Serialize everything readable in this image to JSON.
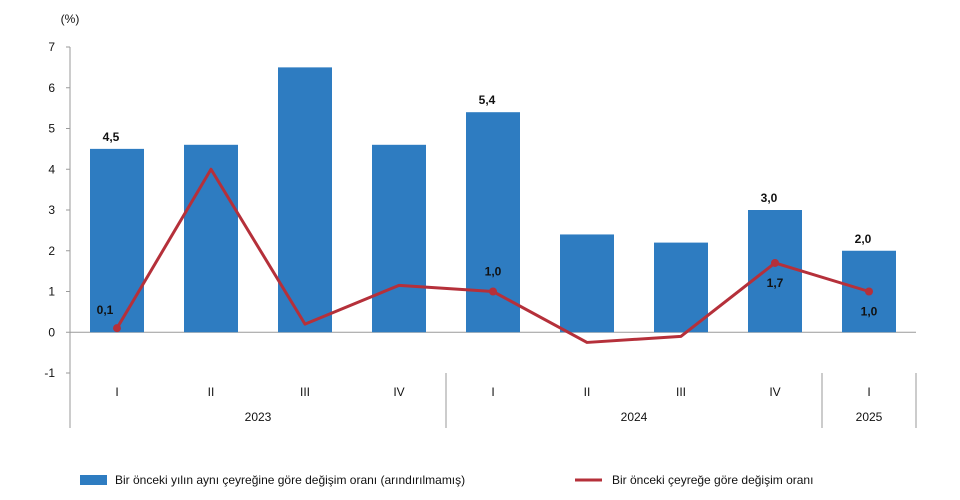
{
  "chart_data": {
    "type": "bar",
    "unit_label": "(%)",
    "y_ticks": [
      "7",
      "6",
      "5",
      "4",
      "3",
      "2",
      "1",
      "0",
      "-1"
    ],
    "ylim": [
      -1,
      7
    ],
    "quarters": [
      "I",
      "II",
      "III",
      "IV",
      "I",
      "II",
      "III",
      "IV",
      "I"
    ],
    "years": [
      "2023",
      "2024",
      "2025"
    ],
    "colors": {
      "bars": "#2e7cc1",
      "line": "#b5303a",
      "axis": "#9a9a9a"
    },
    "series": [
      {
        "name": "Bir önceki yılın aynı çeyreğine göre değişim oranı (arındırılmamış)",
        "kind": "bar",
        "values": [
          4.5,
          4.6,
          6.5,
          4.6,
          5.4,
          2.4,
          2.2,
          3.0,
          2.0
        ],
        "labels": [
          "4,5",
          "",
          "",
          "",
          "5,4",
          "",
          "",
          "3,0",
          "2,0"
        ]
      },
      {
        "name": "Bir önceki çeyreğe göre değişim oranı",
        "kind": "line",
        "values": [
          0.1,
          4.0,
          0.2,
          1.15,
          1.0,
          -0.25,
          -0.1,
          1.7,
          1.0
        ],
        "labels": [
          "0,1",
          "",
          "",
          "",
          "1,0",
          "",
          "",
          "1,7",
          "1,0"
        ],
        "markers": [
          true,
          false,
          false,
          false,
          true,
          false,
          false,
          true,
          true
        ]
      }
    ]
  }
}
